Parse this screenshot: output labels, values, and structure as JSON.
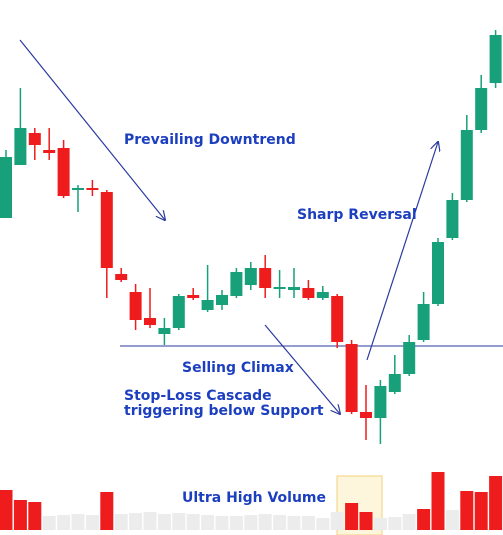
{
  "chart_data": {
    "type": "candlestick",
    "annotations": [
      "Prevailing Downtrend",
      "Sharp Reversal",
      "Selling Climax",
      "Stop-Loss Cascade",
      "triggering below Support",
      "Ultra High Volume"
    ],
    "up_color": "#17a07a",
    "down_color": "#ee1c1c",
    "ylim": [
      0,
      107
    ],
    "support": 37.8,
    "open": [
      63.4,
      74,
      80.4,
      77,
      77.4,
      69,
      69.4,
      68.6,
      52.2,
      48.6,
      43.4,
      40.2,
      41.4,
      48,
      45,
      46,
      47.8,
      50,
      53.4,
      49.2,
      49,
      49.4,
      47.4,
      47.8,
      38.2,
      24.6,
      23.4,
      28.6,
      32.2,
      39,
      46.2,
      59.4,
      67,
      81,
      90.4
    ],
    "close": [
      75.6,
      81.4,
      78,
      76.4,
      67.8,
      69.4,
      69,
      53.4,
      51,
      43,
      42,
      41.4,
      47.8,
      47.4,
      47,
      48,
      52.6,
      53.4,
      49.4,
      49.6,
      49.6,
      47.4,
      48.6,
      38.6,
      24.6,
      23.4,
      29.8,
      32.2,
      38.6,
      46.2,
      58.6,
      67,
      81,
      89.4,
      100
    ],
    "high": [
      77,
      89.4,
      81.4,
      81.4,
      79,
      70,
      71,
      69,
      53.4,
      50.2,
      49.4,
      43.4,
      48.2,
      49.4,
      54,
      49,
      53.4,
      54.6,
      56,
      53,
      53.4,
      51,
      49.8,
      48.2,
      39,
      30,
      31,
      36,
      40,
      48.6,
      59.4,
      68.4,
      84,
      92,
      101
    ],
    "low": [
      63.4,
      74,
      75,
      75,
      67.4,
      64.6,
      67.8,
      47.4,
      50.6,
      41,
      41.4,
      38,
      41,
      47,
      44.6,
      45,
      47.4,
      49,
      47.4,
      47.4,
      47.4,
      47,
      47,
      37.4,
      24.2,
      19,
      18.2,
      28.2,
      31.8,
      38.6,
      45.8,
      59,
      66.6,
      80.4,
      89.4
    ],
    "volume": [
      40,
      30,
      28,
      14,
      15,
      16,
      15,
      38,
      16,
      17,
      18,
      16,
      17,
      16,
      15,
      14,
      14,
      15,
      16,
      15,
      14,
      14,
      12,
      18,
      27,
      18,
      12,
      13,
      16,
      21,
      58,
      20,
      39,
      38,
      54
    ],
    "volume_colors": [
      "#ee1c1c",
      "#ee1c1c",
      "#ee1c1c",
      "#ececec",
      "#ececec",
      "#ececec",
      "#ececec",
      "#ee1c1c",
      "#ececec",
      "#ececec",
      "#ececec",
      "#ececec",
      "#ececec",
      "#ececec",
      "#ececec",
      "#ececec",
      "#ececec",
      "#ececec",
      "#ececec",
      "#ececec",
      "#ececec",
      "#ececec",
      "#ececec",
      "#ececec",
      "#ee1c1c",
      "#ee1c1c",
      "#ececec",
      "#ececec",
      "#ececec",
      "#ee1c1c",
      "#ee1c1c",
      "#ececec",
      "#ee1c1c",
      "#ee1c1c",
      "#ee1c1c"
    ],
    "vlim": [
      0,
      70
    ]
  }
}
